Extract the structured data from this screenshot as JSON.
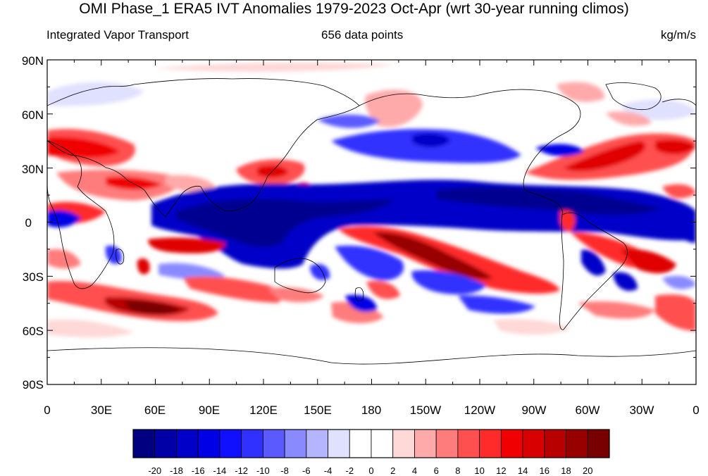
{
  "title": "OMI Phase_1 ERA5 IVT Anomalies 1979-2023 Oct-Apr (wrt 30-year running climos)",
  "subtitle_left": "Integrated Vapor Transport",
  "subtitle_center": "656 data points",
  "subtitle_right": "kg/m/s",
  "lat_ticks": [
    "90N",
    "60N",
    "30N",
    "0",
    "30S",
    "60S",
    "90S"
  ],
  "lon_ticks": [
    "0",
    "30E",
    "60E",
    "90E",
    "120E",
    "150E",
    "180",
    "150W",
    "120W",
    "90W",
    "60W",
    "30W",
    "0"
  ],
  "colorbar": {
    "labels": [
      "-20",
      "-18",
      "-16",
      "-14",
      "-12",
      "-10",
      "-8",
      "-6",
      "-4",
      "-2",
      "0",
      "2",
      "4",
      "6",
      "8",
      "10",
      "12",
      "14",
      "16",
      "18",
      "20"
    ],
    "colors": [
      "#000080",
      "#0000a6",
      "#0000c8",
      "#0000e6",
      "#1010ff",
      "#3030ff",
      "#5a5aff",
      "#8a8aff",
      "#b4b4ff",
      "#e0e0ff",
      "#ffffff",
      "#ffffff",
      "#ffd8d8",
      "#ffaaaa",
      "#ff7c7c",
      "#ff5050",
      "#ff2a2a",
      "#f00000",
      "#d80000",
      "#b80000",
      "#980000",
      "#780000"
    ]
  },
  "colors": {
    "positive": "#d00000",
    "negative": "#0000c8",
    "coast": "#000000"
  }
}
